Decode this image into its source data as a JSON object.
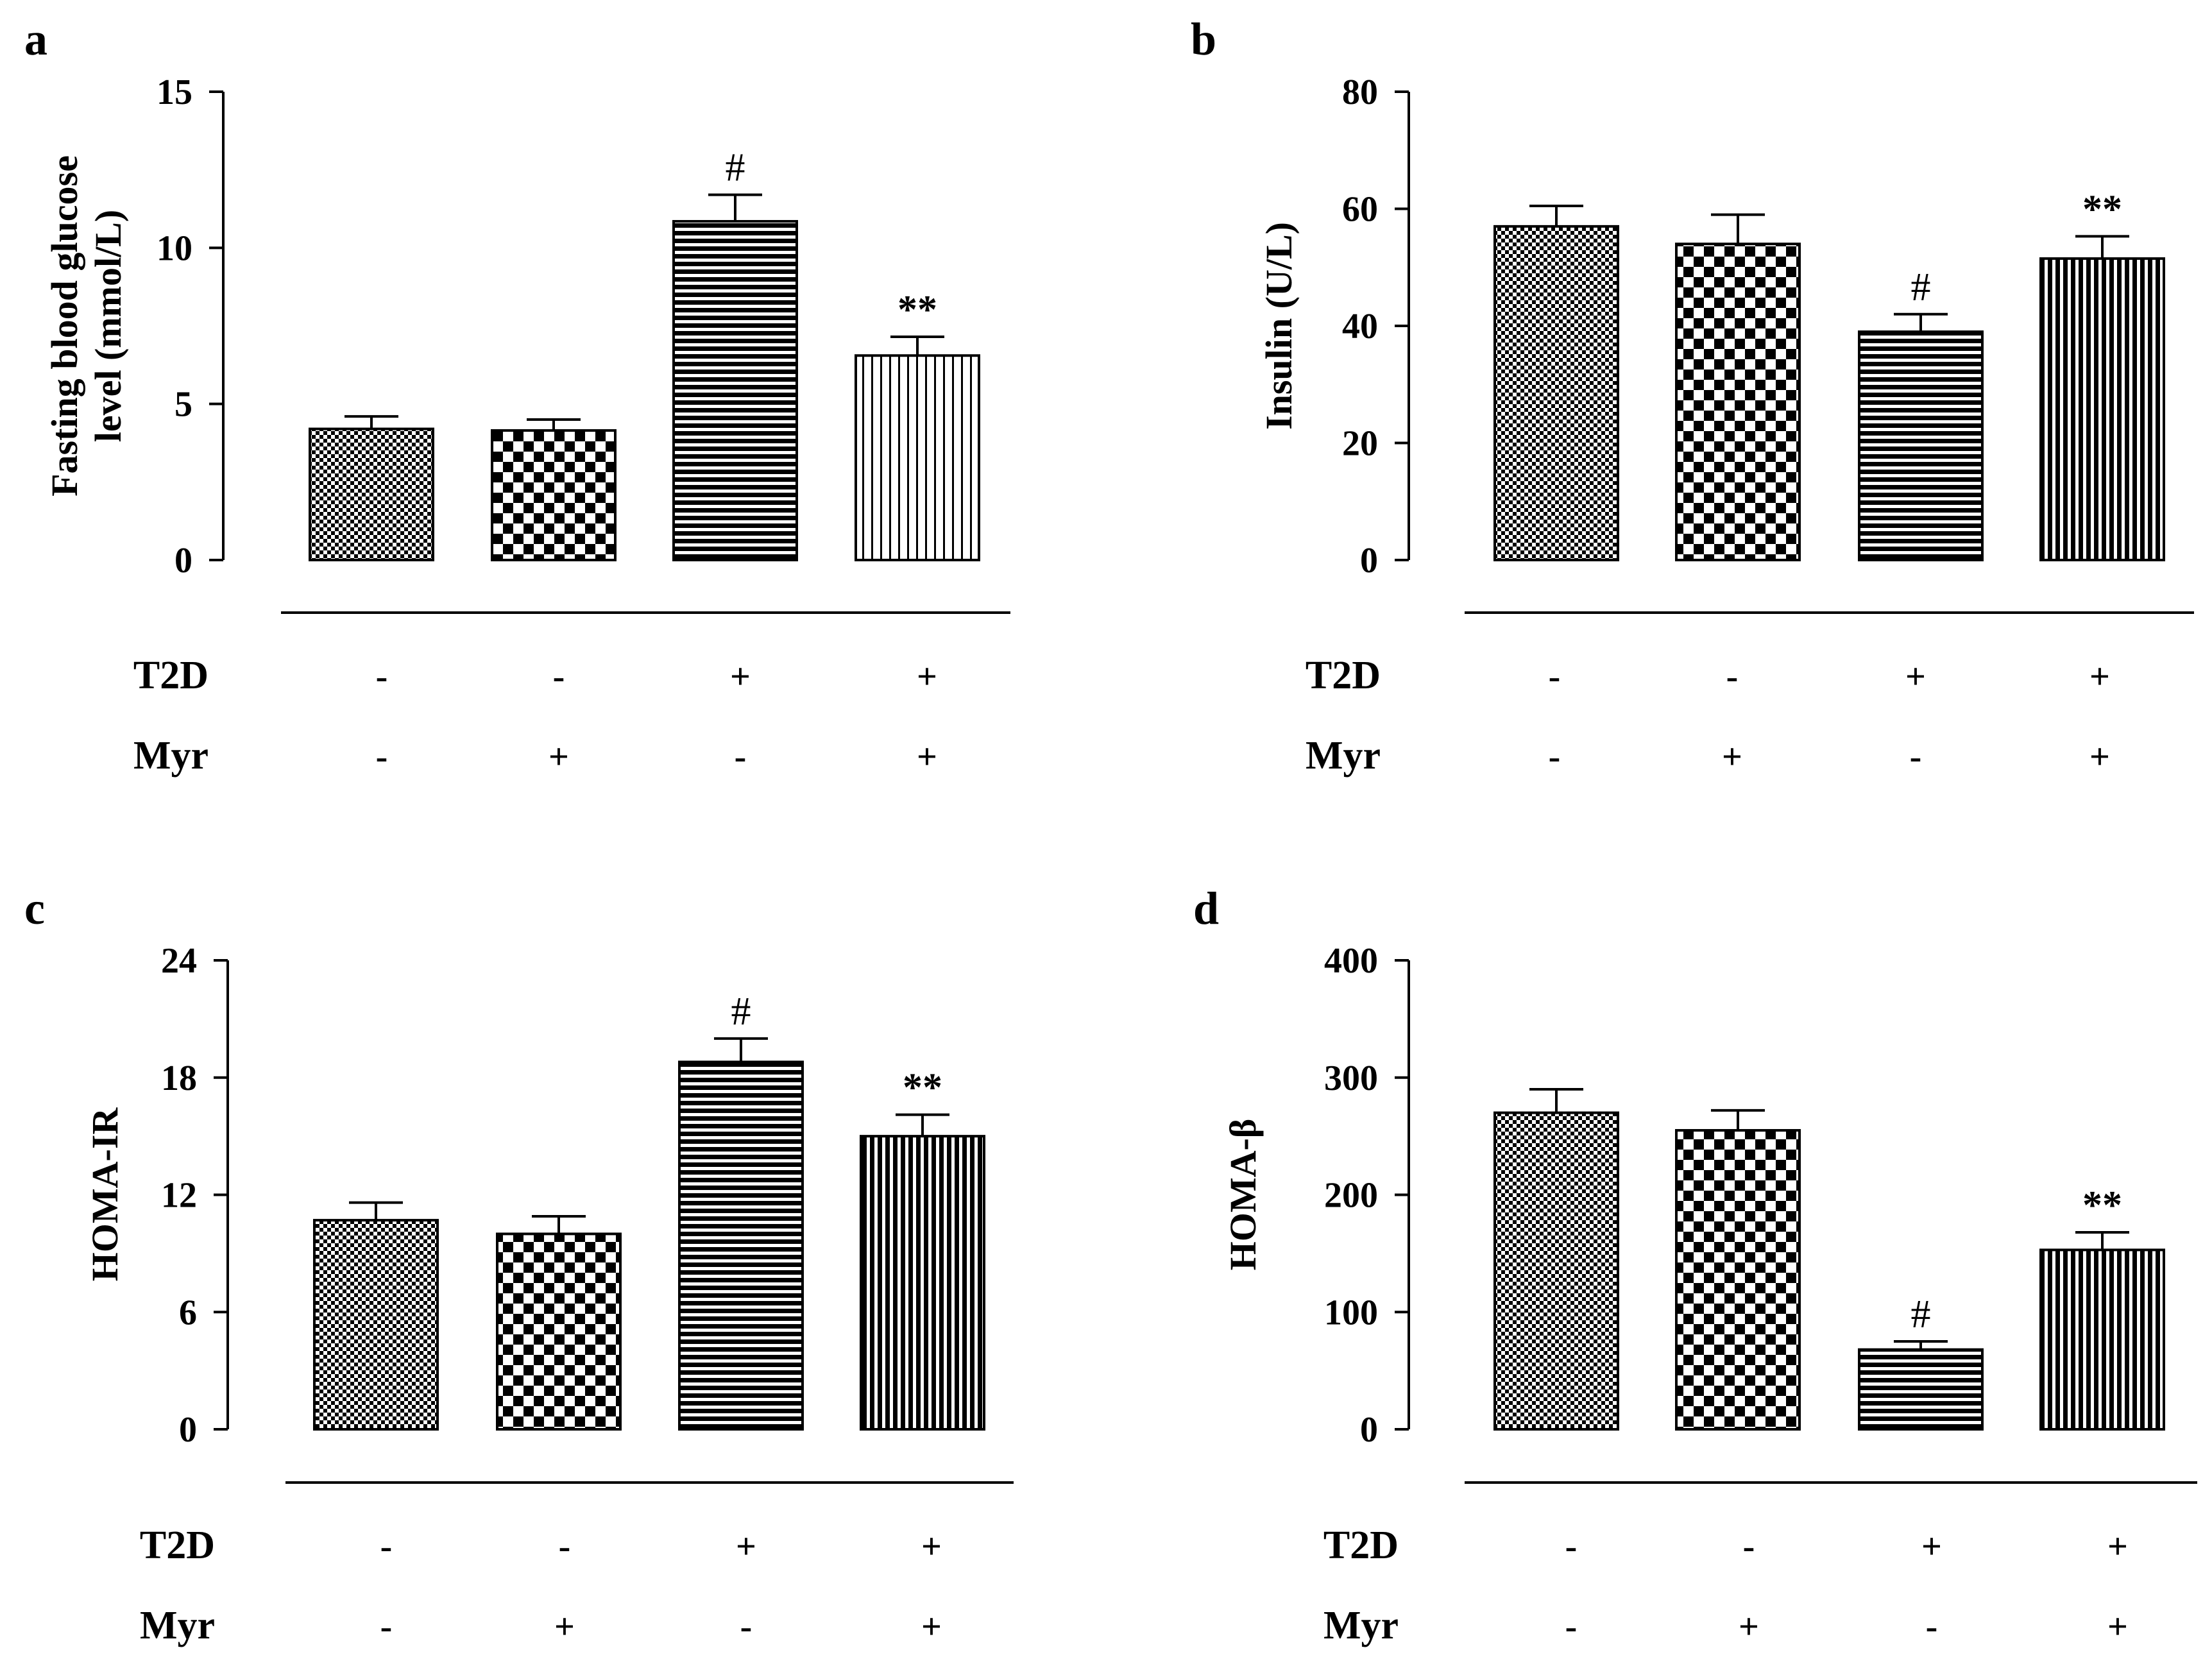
{
  "chart_data": [
    {
      "panel": "a",
      "type": "bar",
      "ylabel": "Fasting blood glucose level (mmol/L)",
      "ylabel_lines": [
        "Fasting blood glucose",
        "level (mmol/L)"
      ],
      "ylim": [
        0,
        15
      ],
      "yticks": [
        0,
        5,
        10,
        15
      ],
      "values": [
        4.2,
        4.15,
        10.85,
        6.55
      ],
      "errors": [
        0.4,
        0.35,
        0.85,
        0.6
      ],
      "annotations": [
        "",
        "",
        "#",
        "**"
      ],
      "patterns": [
        "fine-check",
        "check",
        "hlines",
        "vlines-light"
      ],
      "groups": {
        "rows": [
          {
            "label": "T2D",
            "signs": [
              "-",
              "-",
              "+",
              "+"
            ]
          },
          {
            "label": "Myr",
            "signs": [
              "-",
              "+",
              "-",
              "+"
            ]
          }
        ]
      }
    },
    {
      "panel": "b",
      "type": "bar",
      "ylabel": "Insulin (U/L)",
      "ylabel_lines": [
        "Insulin (U/L)"
      ],
      "ylim": [
        0,
        80
      ],
      "yticks": [
        0,
        20,
        40,
        60,
        80
      ],
      "values": [
        57,
        54,
        39,
        51.5
      ],
      "errors": [
        3.5,
        5,
        3,
        3.8
      ],
      "annotations": [
        "",
        "",
        "#",
        "**"
      ],
      "patterns": [
        "fine-check",
        "check",
        "hlines",
        "vlines-dark"
      ],
      "groups": {
        "rows": [
          {
            "label": "T2D",
            "signs": [
              "-",
              "-",
              "+",
              "+"
            ]
          },
          {
            "label": "Myr",
            "signs": [
              "-",
              "+",
              "-",
              "+"
            ]
          }
        ]
      }
    },
    {
      "panel": "c",
      "type": "bar",
      "ylabel": "HOMA-IR",
      "ylabel_lines": [
        "HOMA-IR"
      ],
      "ylim": [
        0,
        24
      ],
      "yticks": [
        0,
        6,
        12,
        18,
        24
      ],
      "values": [
        10.7,
        10,
        18.8,
        15
      ],
      "errors": [
        0.9,
        0.9,
        1.2,
        1.1
      ],
      "annotations": [
        "",
        "",
        "#",
        "**"
      ],
      "patterns": [
        "fine-check",
        "check",
        "hlines",
        "vlines-dark"
      ],
      "groups": {
        "rows": [
          {
            "label": "T2D",
            "signs": [
              "-",
              "-",
              "+",
              "+"
            ]
          },
          {
            "label": "Myr",
            "signs": [
              "-",
              "+",
              "-",
              "+"
            ]
          }
        ]
      }
    },
    {
      "panel": "d",
      "type": "bar",
      "ylabel": "HOMA-β",
      "ylabel_lines": [
        "HOMA-β"
      ],
      "ylim": [
        0,
        400
      ],
      "yticks": [
        0,
        100,
        200,
        300,
        400
      ],
      "values": [
        270,
        255,
        68,
        153
      ],
      "errors": [
        20,
        17,
        7,
        15
      ],
      "annotations": [
        "",
        "",
        "#",
        "**"
      ],
      "patterns": [
        "fine-check",
        "check",
        "hlines",
        "vlines-dark"
      ],
      "groups": {
        "rows": [
          {
            "label": "T2D",
            "signs": [
              "-",
              "-",
              "+",
              "+"
            ]
          },
          {
            "label": "Myr",
            "signs": [
              "-",
              "+",
              "-",
              "+"
            ]
          }
        ]
      }
    }
  ]
}
